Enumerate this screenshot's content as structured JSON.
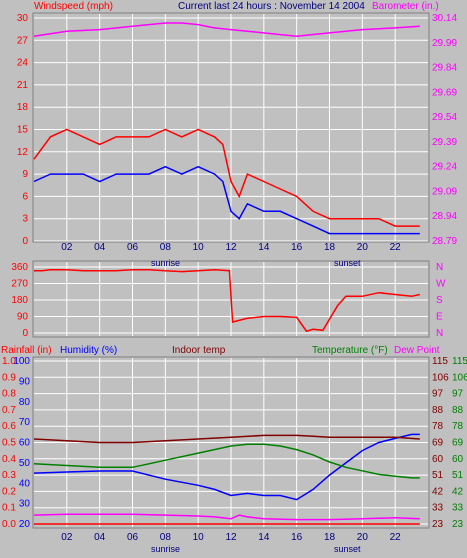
{
  "header": {
    "wind_title": "Windspeed (mph)",
    "period_title": "Current last 24 hours : November 14 2004",
    "baro_title": "Barometer (in.)"
  },
  "bottom_header": {
    "rain_title": "Rainfall (in)",
    "hum_title": "Humidity (%)",
    "indoor_title": "Indoor temp",
    "temp_title": "Temperature (°F)",
    "dew_title": "Dew Point"
  },
  "x_axis": {
    "ticks": [
      "02",
      "04",
      "06",
      "08",
      "10",
      "12",
      "14",
      "16",
      "18",
      "20",
      "22"
    ],
    "sunrise_label": "sunrise",
    "sunset_label": "sunset"
  },
  "colors": {
    "background": "#c0c0c0",
    "grid": "#ffffff",
    "wind_axis": "#ff0000",
    "baro_axis": "#ff00ff",
    "humidity_axis": "#0000ff",
    "temperature_axis": "#008000",
    "dew_axis": "#800000",
    "header_blue": "#000080"
  },
  "chart_data": [
    {
      "type": "line",
      "name": "wind-panel",
      "x_unit": "hour",
      "xlim": [
        0,
        24
      ],
      "left_axis": {
        "label": "Windspeed (mph)",
        "ylim": [
          0,
          30
        ],
        "ticks": [
          "0",
          "3",
          "6",
          "9",
          "12",
          "15",
          "18",
          "21",
          "24",
          "27",
          "30"
        ]
      },
      "right_axis": {
        "label": "Barometer (in.)",
        "ylim": [
          28.79,
          30.14
        ],
        "ticks": [
          "28.79",
          "28.94",
          "29.09",
          "29.24",
          "29.39",
          "29.54",
          "29.69",
          "29.84",
          "29.99",
          "30.14"
        ]
      },
      "grid": true,
      "series": [
        {
          "name": "Windspeed",
          "axis": "left",
          "color": "#0000ff",
          "x": [
            0,
            1,
            2,
            3,
            4,
            5,
            6,
            7,
            8,
            9,
            10,
            11,
            11.5,
            12,
            12.5,
            13,
            14,
            15,
            16,
            17,
            18,
            19,
            20,
            21,
            22,
            23,
            23.5
          ],
          "y": [
            8,
            9,
            9,
            9,
            8,
            9,
            9,
            9,
            10,
            9,
            10,
            9,
            8,
            4,
            3,
            5,
            4,
            4,
            3,
            2,
            1,
            1,
            1,
            1,
            1,
            1,
            1
          ]
        },
        {
          "name": "Wind gust",
          "axis": "left",
          "color": "#ff0000",
          "x": [
            0,
            1,
            2,
            3,
            4,
            5,
            6,
            7,
            8,
            9,
            10,
            11,
            11.5,
            12,
            12.5,
            13,
            14,
            15,
            16,
            17,
            18,
            19,
            20,
            21,
            22,
            23,
            23.5
          ],
          "y": [
            11,
            14,
            15,
            14,
            13,
            14,
            14,
            14,
            15,
            14,
            15,
            14,
            13,
            8,
            6,
            9,
            8,
            7,
            6,
            4,
            3,
            3,
            3,
            3,
            2,
            2,
            2
          ]
        },
        {
          "name": "Barometer",
          "axis": "right",
          "color": "#ff00ff",
          "x": [
            0,
            2,
            4,
            6,
            7,
            8,
            9,
            10,
            11,
            12,
            14,
            16,
            17,
            18,
            20,
            22,
            23.5
          ],
          "y": [
            30.03,
            30.06,
            30.07,
            30.09,
            30.1,
            30.11,
            30.11,
            30.1,
            30.08,
            30.07,
            30.05,
            30.03,
            30.04,
            30.05,
            30.07,
            30.08,
            30.09
          ]
        }
      ]
    },
    {
      "type": "line",
      "name": "wind-direction-panel",
      "x_unit": "hour",
      "xlim": [
        0,
        24
      ],
      "left_axis": {
        "label": "",
        "ylim": [
          0,
          360
        ],
        "ticks": [
          "0",
          "90",
          "180",
          "270",
          "360"
        ]
      },
      "right_axis": {
        "label": "",
        "ticks": [
          "N",
          "E",
          "S",
          "W",
          "N"
        ]
      },
      "grid": true,
      "series": [
        {
          "name": "Wind direction",
          "axis": "left",
          "color": "#ff0000",
          "x": [
            0,
            0.5,
            1,
            2,
            3,
            4,
            5,
            6,
            7,
            8,
            9,
            10,
            11,
            11.9,
            12.1,
            13,
            14,
            15,
            16,
            16.6,
            17,
            17.6,
            18.5,
            19,
            20,
            21,
            22,
            23,
            23.5
          ],
          "y": [
            340,
            340,
            345,
            345,
            340,
            340,
            340,
            345,
            345,
            340,
            335,
            340,
            345,
            340,
            60,
            80,
            90,
            90,
            85,
            10,
            20,
            15,
            150,
            200,
            200,
            220,
            210,
            200,
            210
          ]
        }
      ]
    },
    {
      "type": "line",
      "name": "temperature-panel",
      "x_unit": "hour",
      "xlim": [
        0,
        24
      ],
      "axes": [
        {
          "label": "Rainfall (in)",
          "ylim": [
            0,
            1
          ],
          "ticks": [
            "0.0",
            "0.1",
            "0.2",
            "0.3",
            "0.4",
            "0.5",
            "0.6",
            "0.7",
            "0.8",
            "0.9",
            "1.0"
          ]
        },
        {
          "label": "Humidity (%)",
          "ylim": [
            20,
            100
          ],
          "ticks": [
            "20",
            "30",
            "40",
            "50",
            "60",
            "70",
            "80",
            "90",
            "100"
          ]
        },
        {
          "label": "Temperature (°F)",
          "ylim": [
            23,
            115
          ],
          "ticks": [
            "23",
            "33",
            "42",
            "51",
            "60",
            "69",
            "78",
            "88",
            "97",
            "106",
            "115"
          ]
        },
        {
          "label": "Dew Point",
          "ylim": [
            23,
            115
          ],
          "ticks": [
            "23",
            "33",
            "42",
            "51",
            "60",
            "69",
            "78",
            "88",
            "97",
            "106",
            "115"
          ]
        }
      ],
      "grid": true,
      "series": [
        {
          "name": "Humidity",
          "axis": "Humidity (%)",
          "color": "#0000ff",
          "x": [
            0,
            2,
            4,
            6,
            8,
            10,
            11,
            12,
            13,
            14,
            15,
            16,
            17,
            18,
            19,
            20,
            21,
            22,
            23,
            23.5
          ],
          "y": [
            45,
            45.5,
            46,
            46,
            42,
            39,
            37,
            34,
            35,
            34,
            34,
            32,
            37,
            44,
            50,
            56,
            60,
            62,
            64,
            64
          ]
        },
        {
          "name": "Temperature",
          "axis": "Temperature (°F)",
          "color": "#008000",
          "x": [
            0,
            2,
            4,
            6,
            7,
            8,
            10,
            12,
            13,
            14,
            15,
            16,
            17,
            18,
            19,
            20,
            21,
            22,
            23,
            23.5
          ],
          "y": [
            57,
            56,
            55,
            55,
            57,
            59,
            63,
            67,
            68,
            68,
            67,
            65,
            62,
            58,
            55,
            53,
            51,
            50,
            49,
            49
          ]
        },
        {
          "name": "Dew Point",
          "axis": "Dew Point",
          "color": "#800000",
          "x": [
            0,
            2,
            4,
            6,
            8,
            10,
            12,
            14,
            16,
            17,
            18,
            20,
            22,
            23.5
          ],
          "y": [
            71,
            70,
            69,
            69,
            70,
            71,
            72,
            73,
            73,
            72.5,
            72,
            72,
            72,
            71
          ]
        },
        {
          "name": "Indoor temp",
          "axis": "Temperature (°F)",
          "color": "#ff00ff",
          "x": [
            0,
            2,
            4,
            6,
            8,
            10,
            11,
            12,
            12.5,
            13,
            14,
            16,
            18,
            20,
            22,
            23.5
          ],
          "y": [
            28,
            28.5,
            28.5,
            28.5,
            28,
            27.5,
            27,
            26,
            28,
            27,
            26,
            25.5,
            25.5,
            26,
            26.5,
            26
          ]
        },
        {
          "name": "Rainfall",
          "axis": "Rainfall (in)",
          "color": "#ff0000",
          "x": [
            0,
            23.5
          ],
          "y": [
            0,
            0
          ]
        }
      ]
    }
  ]
}
